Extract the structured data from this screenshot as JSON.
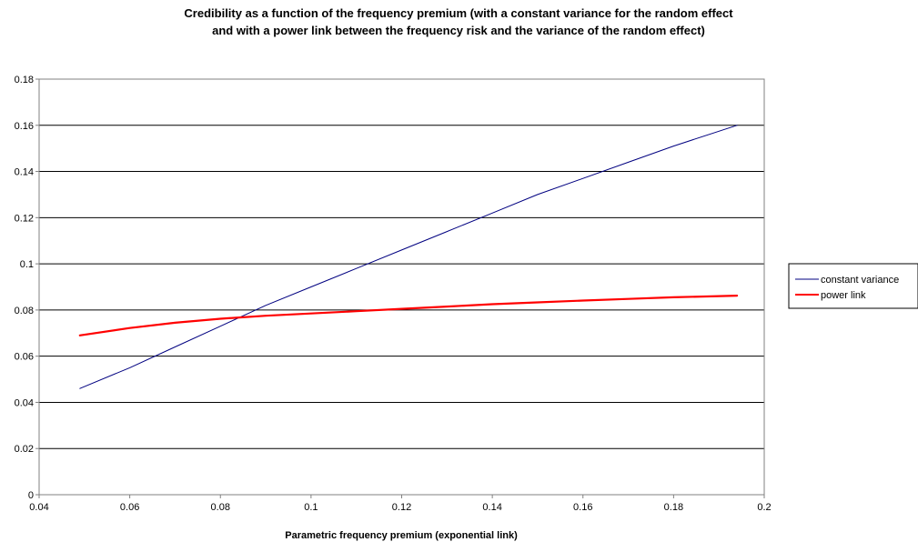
{
  "chart_data": {
    "type": "line",
    "title": "Credibility as a function of the frequency premium (with a constant variance for the random effect",
    "subtitle": "and with a power link between the frequency risk and the variance of the random effect)",
    "xlabel": "Parametric frequency premium (exponential link)",
    "ylabel": "",
    "xlim": [
      0.04,
      0.2
    ],
    "ylim": [
      0,
      0.18
    ],
    "x_ticks": [
      "0.04",
      "0.06",
      "0.08",
      "0.1",
      "0.12",
      "0.14",
      "0.16",
      "0.18",
      "0.2"
    ],
    "y_ticks": [
      "0",
      "0.02",
      "0.04",
      "0.06",
      "0.08",
      "0.1",
      "0.12",
      "0.14",
      "0.16",
      "0.18"
    ],
    "x_tick_values": [
      0.04,
      0.06,
      0.08,
      0.1,
      0.12,
      0.14,
      0.16,
      0.18,
      0.2
    ],
    "y_tick_values": [
      0,
      0.02,
      0.04,
      0.06,
      0.08,
      0.1,
      0.12,
      0.14,
      0.16,
      0.18
    ],
    "grid": "horizontal",
    "legend_position": "right",
    "series": [
      {
        "name": "constant variance",
        "color": "#000080",
        "x": [
          0.049,
          0.06,
          0.07,
          0.08,
          0.09,
          0.1,
          0.11,
          0.12,
          0.13,
          0.14,
          0.15,
          0.16,
          0.17,
          0.18,
          0.194
        ],
        "y": [
          0.046,
          0.055,
          0.064,
          0.073,
          0.082,
          0.09,
          0.098,
          0.106,
          0.114,
          0.122,
          0.13,
          0.137,
          0.144,
          0.151,
          0.16
        ]
      },
      {
        "name": "power link",
        "color": "#ff0000",
        "x": [
          0.049,
          0.06,
          0.07,
          0.08,
          0.09,
          0.1,
          0.11,
          0.12,
          0.13,
          0.14,
          0.15,
          0.16,
          0.17,
          0.18,
          0.194
        ],
        "y": [
          0.069,
          0.0722,
          0.0745,
          0.0762,
          0.0775,
          0.0785,
          0.0795,
          0.0805,
          0.0815,
          0.0825,
          0.0833,
          0.0841,
          0.0848,
          0.0855,
          0.0862
        ]
      }
    ]
  }
}
